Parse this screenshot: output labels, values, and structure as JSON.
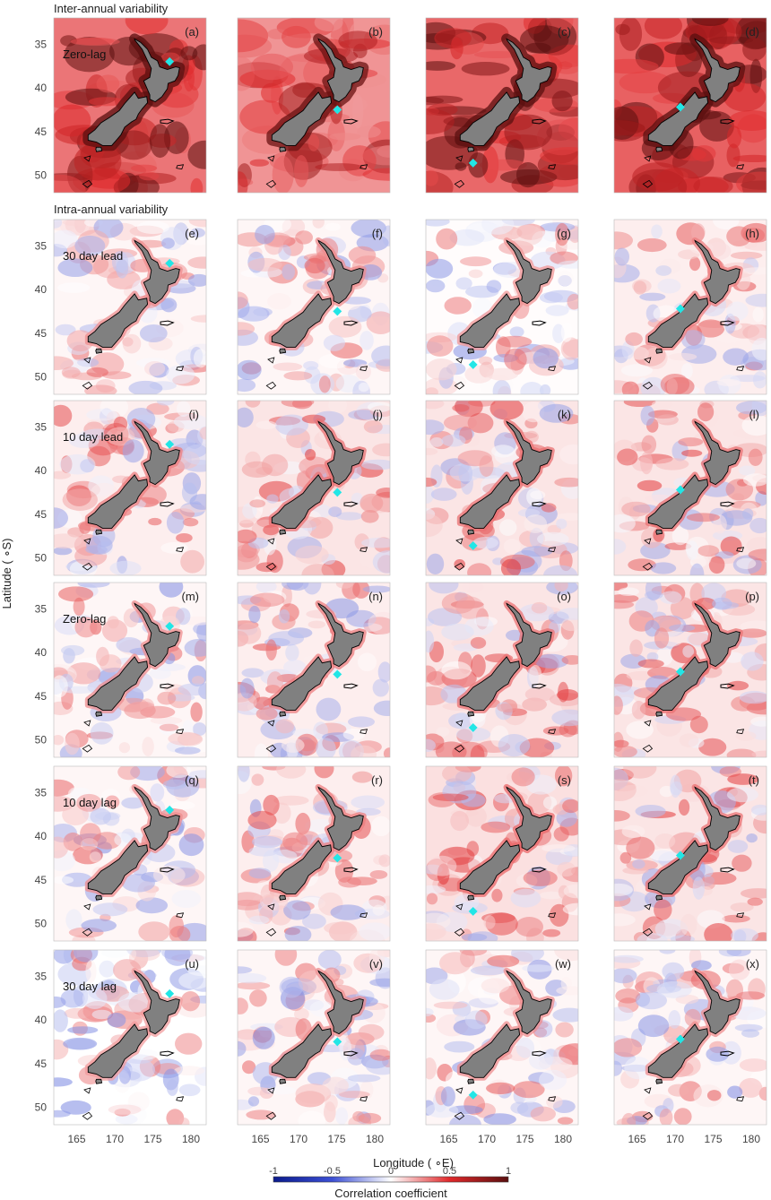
{
  "chart_data": {
    "type": "heatmap",
    "title": "",
    "sections": [
      "Inter-annual variability",
      "Intra-annual variability"
    ],
    "xlabel": "Longitude ( ∘E)",
    "ylabel": "Latitude ( ∘S)",
    "xlim": [
      162,
      182
    ],
    "ylim": [
      52,
      32
    ],
    "xticks": [
      "165",
      "170",
      "175",
      "180"
    ],
    "yticks": [
      "35",
      "40",
      "45",
      "50"
    ],
    "colorbar": {
      "label": "Correlation coefficient",
      "ticks": [
        "-1",
        "-0.5",
        "0",
        "0.5",
        "1"
      ],
      "range": [
        -1,
        1
      ],
      "colors": [
        "#0a1a8c",
        "#3b4fd4",
        "#ffffff",
        "#e0282a",
        "#5a0f0f"
      ]
    },
    "site_marker_color": "#22e6e6",
    "land_color": "#808080",
    "sites": [
      {
        "lon": 177.2,
        "lat": -37.0
      },
      {
        "lon": 175.1,
        "lat": -42.5
      },
      {
        "lon": 168.2,
        "lat": -48.6
      },
      {
        "lon": 170.7,
        "lat": -42.2
      }
    ],
    "rows": [
      {
        "label": "Zero-lag",
        "panels": [
          "(a)",
          "(b)",
          "(c)",
          "(d)"
        ],
        "strength": [
          0.8,
          0.62,
          0.88,
          0.92
        ],
        "noise": 0.28
      },
      {
        "label": "30 day lead",
        "panels": [
          "(e)",
          "(f)",
          "(g)",
          "(h)"
        ],
        "strength": [
          0.05,
          0.05,
          0.02,
          0.1
        ],
        "noise": 0.5
      },
      {
        "label": "10 day lead",
        "panels": [
          "(i)",
          "(j)",
          "(k)",
          "(l)"
        ],
        "strength": [
          0.1,
          0.15,
          0.15,
          0.15
        ],
        "noise": 0.55
      },
      {
        "label": "Zero-lag",
        "panels": [
          "(m)",
          "(n)",
          "(o)",
          "(p)"
        ],
        "strength": [
          0.05,
          0.1,
          0.15,
          0.15
        ],
        "noise": 0.55
      },
      {
        "label": "10 day lag",
        "panels": [
          "(q)",
          "(r)",
          "(s)",
          "(t)"
        ],
        "strength": [
          0.05,
          0.1,
          0.18,
          0.15
        ],
        "noise": 0.55
      },
      {
        "label": "30 day lag",
        "panels": [
          "(u)",
          "(v)",
          "(w)",
          "(x)"
        ],
        "strength": [
          0.0,
          0.05,
          0.05,
          0.05
        ],
        "noise": 0.55
      }
    ]
  }
}
